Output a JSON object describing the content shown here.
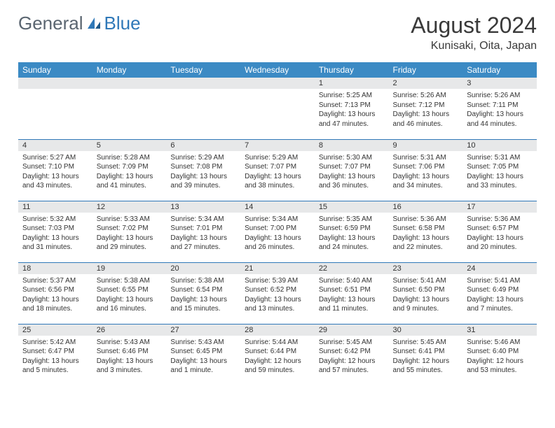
{
  "brand": {
    "part1": "General",
    "part2": "Blue"
  },
  "title": "August 2024",
  "location": "Kunisaki, Oita, Japan",
  "colors": {
    "header_bg": "#3b8ac4",
    "header_text": "#ffffff",
    "daynum_bg": "#e7e8e9",
    "border": "#2f78b8",
    "brand_gray": "#5a6570",
    "brand_blue": "#2f78b8"
  },
  "day_headers": [
    "Sunday",
    "Monday",
    "Tuesday",
    "Wednesday",
    "Thursday",
    "Friday",
    "Saturday"
  ],
  "weeks": [
    [
      null,
      null,
      null,
      null,
      {
        "n": "1",
        "sr": "5:25 AM",
        "ss": "7:13 PM",
        "dl": "Daylight: 13 hours and 47 minutes."
      },
      {
        "n": "2",
        "sr": "5:26 AM",
        "ss": "7:12 PM",
        "dl": "Daylight: 13 hours and 46 minutes."
      },
      {
        "n": "3",
        "sr": "5:26 AM",
        "ss": "7:11 PM",
        "dl": "Daylight: 13 hours and 44 minutes."
      }
    ],
    [
      {
        "n": "4",
        "sr": "5:27 AM",
        "ss": "7:10 PM",
        "dl": "Daylight: 13 hours and 43 minutes."
      },
      {
        "n": "5",
        "sr": "5:28 AM",
        "ss": "7:09 PM",
        "dl": "Daylight: 13 hours and 41 minutes."
      },
      {
        "n": "6",
        "sr": "5:29 AM",
        "ss": "7:08 PM",
        "dl": "Daylight: 13 hours and 39 minutes."
      },
      {
        "n": "7",
        "sr": "5:29 AM",
        "ss": "7:07 PM",
        "dl": "Daylight: 13 hours and 38 minutes."
      },
      {
        "n": "8",
        "sr": "5:30 AM",
        "ss": "7:07 PM",
        "dl": "Daylight: 13 hours and 36 minutes."
      },
      {
        "n": "9",
        "sr": "5:31 AM",
        "ss": "7:06 PM",
        "dl": "Daylight: 13 hours and 34 minutes."
      },
      {
        "n": "10",
        "sr": "5:31 AM",
        "ss": "7:05 PM",
        "dl": "Daylight: 13 hours and 33 minutes."
      }
    ],
    [
      {
        "n": "11",
        "sr": "5:32 AM",
        "ss": "7:03 PM",
        "dl": "Daylight: 13 hours and 31 minutes."
      },
      {
        "n": "12",
        "sr": "5:33 AM",
        "ss": "7:02 PM",
        "dl": "Daylight: 13 hours and 29 minutes."
      },
      {
        "n": "13",
        "sr": "5:34 AM",
        "ss": "7:01 PM",
        "dl": "Daylight: 13 hours and 27 minutes."
      },
      {
        "n": "14",
        "sr": "5:34 AM",
        "ss": "7:00 PM",
        "dl": "Daylight: 13 hours and 26 minutes."
      },
      {
        "n": "15",
        "sr": "5:35 AM",
        "ss": "6:59 PM",
        "dl": "Daylight: 13 hours and 24 minutes."
      },
      {
        "n": "16",
        "sr": "5:36 AM",
        "ss": "6:58 PM",
        "dl": "Daylight: 13 hours and 22 minutes."
      },
      {
        "n": "17",
        "sr": "5:36 AM",
        "ss": "6:57 PM",
        "dl": "Daylight: 13 hours and 20 minutes."
      }
    ],
    [
      {
        "n": "18",
        "sr": "5:37 AM",
        "ss": "6:56 PM",
        "dl": "Daylight: 13 hours and 18 minutes."
      },
      {
        "n": "19",
        "sr": "5:38 AM",
        "ss": "6:55 PM",
        "dl": "Daylight: 13 hours and 16 minutes."
      },
      {
        "n": "20",
        "sr": "5:38 AM",
        "ss": "6:54 PM",
        "dl": "Daylight: 13 hours and 15 minutes."
      },
      {
        "n": "21",
        "sr": "5:39 AM",
        "ss": "6:52 PM",
        "dl": "Daylight: 13 hours and 13 minutes."
      },
      {
        "n": "22",
        "sr": "5:40 AM",
        "ss": "6:51 PM",
        "dl": "Daylight: 13 hours and 11 minutes."
      },
      {
        "n": "23",
        "sr": "5:41 AM",
        "ss": "6:50 PM",
        "dl": "Daylight: 13 hours and 9 minutes."
      },
      {
        "n": "24",
        "sr": "5:41 AM",
        "ss": "6:49 PM",
        "dl": "Daylight: 13 hours and 7 minutes."
      }
    ],
    [
      {
        "n": "25",
        "sr": "5:42 AM",
        "ss": "6:47 PM",
        "dl": "Daylight: 13 hours and 5 minutes."
      },
      {
        "n": "26",
        "sr": "5:43 AM",
        "ss": "6:46 PM",
        "dl": "Daylight: 13 hours and 3 minutes."
      },
      {
        "n": "27",
        "sr": "5:43 AM",
        "ss": "6:45 PM",
        "dl": "Daylight: 13 hours and 1 minute."
      },
      {
        "n": "28",
        "sr": "5:44 AM",
        "ss": "6:44 PM",
        "dl": "Daylight: 12 hours and 59 minutes."
      },
      {
        "n": "29",
        "sr": "5:45 AM",
        "ss": "6:42 PM",
        "dl": "Daylight: 12 hours and 57 minutes."
      },
      {
        "n": "30",
        "sr": "5:45 AM",
        "ss": "6:41 PM",
        "dl": "Daylight: 12 hours and 55 minutes."
      },
      {
        "n": "31",
        "sr": "5:46 AM",
        "ss": "6:40 PM",
        "dl": "Daylight: 12 hours and 53 minutes."
      }
    ]
  ],
  "labels": {
    "sunrise": "Sunrise:",
    "sunset": "Sunset:"
  }
}
